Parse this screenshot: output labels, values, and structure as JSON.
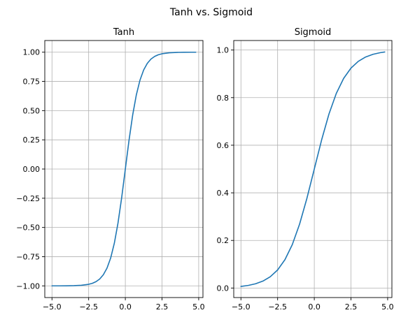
{
  "figure_title": "Tanh vs. Sigmoid",
  "chart_data": [
    {
      "type": "line",
      "title": "Tanh",
      "xlabel": "",
      "ylabel": "",
      "function": "tanh",
      "xlim": [
        -5.49,
        5.29
      ],
      "ylim": [
        -1.1,
        1.1
      ],
      "grid": true,
      "line_color": "#1f77b4",
      "xticks": [
        -5.0,
        -2.5,
        0.0,
        2.5,
        5.0
      ],
      "xtick_labels": [
        "−5.0",
        "−2.5",
        "0.0",
        "2.5",
        "5.0"
      ],
      "yticks": [
        -1.0,
        -0.75,
        -0.5,
        -0.25,
        0.0,
        0.25,
        0.5,
        0.75,
        1.0
      ],
      "ytick_labels": [
        "−1.00",
        "−0.75",
        "−0.50",
        "−0.25",
        "0.00",
        "0.25",
        "0.50",
        "0.75",
        "1.00"
      ],
      "series": [
        {
          "x": [
            -5.0,
            -4.5,
            -4.0,
            -3.5,
            -3.0,
            -2.5,
            -2.25,
            -2.0,
            -1.75,
            -1.5,
            -1.25,
            -1.0,
            -0.75,
            -0.5,
            -0.25,
            0.0,
            0.25,
            0.5,
            0.75,
            1.0,
            1.25,
            1.5,
            1.75,
            2.0,
            2.25,
            2.5,
            3.0,
            3.5,
            4.0,
            4.5,
            4.8
          ],
          "y": [
            -0.9999,
            -0.9998,
            -0.9993,
            -0.9982,
            -0.9951,
            -0.9866,
            -0.978,
            -0.964,
            -0.9414,
            -0.9051,
            -0.8483,
            -0.7616,
            -0.6351,
            -0.4621,
            -0.2449,
            0.0,
            0.2449,
            0.4621,
            0.6351,
            0.7616,
            0.8483,
            0.9051,
            0.9414,
            0.964,
            0.978,
            0.9866,
            0.9951,
            0.9982,
            0.9993,
            0.9998,
            0.9999
          ]
        }
      ]
    },
    {
      "type": "line",
      "title": "Sigmoid",
      "xlabel": "",
      "ylabel": "",
      "function": "sigmoid",
      "xlim": [
        -5.49,
        5.29
      ],
      "ylim": [
        -0.04,
        1.04
      ],
      "grid": true,
      "line_color": "#1f77b4",
      "xticks": [
        -5.0,
        -2.5,
        0.0,
        2.5,
        5.0
      ],
      "xtick_labels": [
        "−5.0",
        "−2.5",
        "0.0",
        "2.5",
        "5.0"
      ],
      "yticks": [
        0.0,
        0.2,
        0.4,
        0.6,
        0.8,
        1.0
      ],
      "ytick_labels": [
        "0.0",
        "0.2",
        "0.4",
        "0.6",
        "0.8",
        "1.0"
      ],
      "series": [
        {
          "x": [
            -5.0,
            -4.5,
            -4.0,
            -3.5,
            -3.0,
            -2.5,
            -2.0,
            -1.5,
            -1.0,
            -0.5,
            0.0,
            0.5,
            1.0,
            1.5,
            2.0,
            2.5,
            3.0,
            3.5,
            4.0,
            4.5,
            4.8
          ],
          "y": [
            0.0067,
            0.011,
            0.018,
            0.0293,
            0.0474,
            0.0759,
            0.1192,
            0.1824,
            0.2689,
            0.3775,
            0.5,
            0.6225,
            0.7311,
            0.8176,
            0.8808,
            0.9241,
            0.9526,
            0.9707,
            0.982,
            0.989,
            0.9918
          ]
        }
      ]
    }
  ]
}
